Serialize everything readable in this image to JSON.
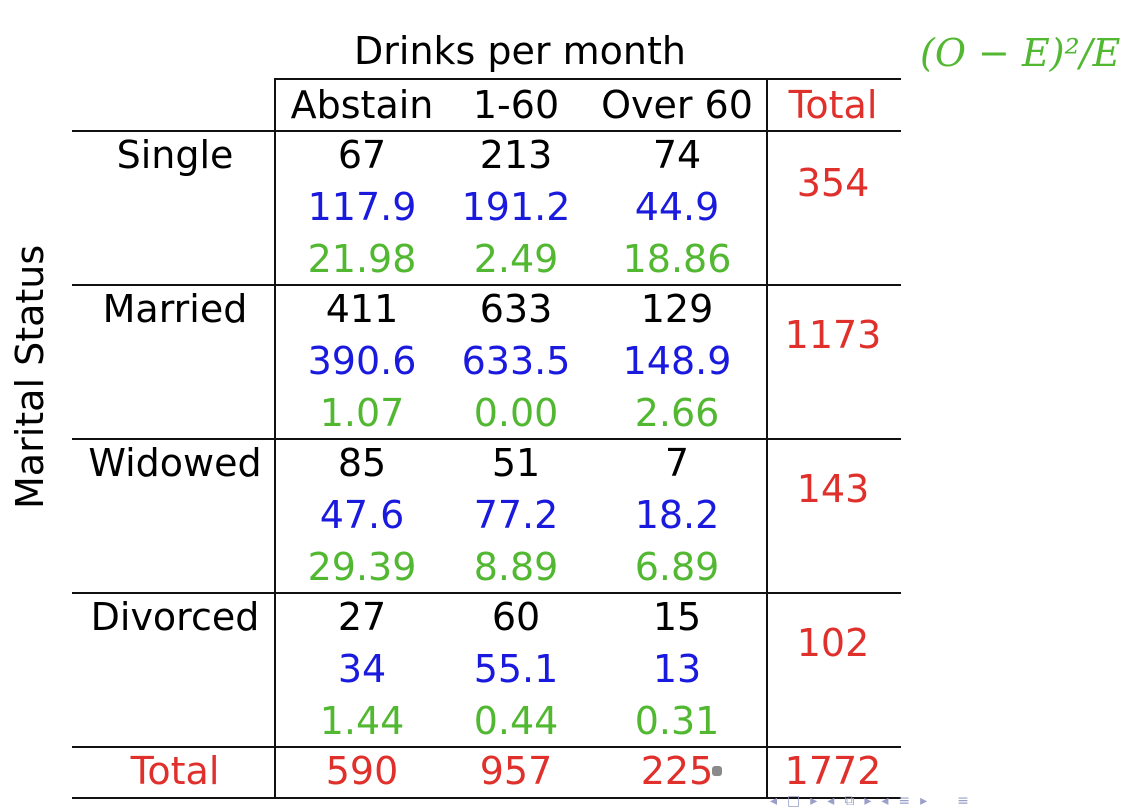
{
  "header": {
    "group_label": "Drinks per month",
    "formula": "(O − E)²/E",
    "side_label": "Marital Status"
  },
  "columns": [
    "Abstain",
    "1-60",
    "Over 60",
    "Total"
  ],
  "rows": [
    {
      "label": "Single",
      "observed": [
        "67",
        "213",
        "74"
      ],
      "expected": [
        "117.9",
        "191.2",
        "44.9"
      ],
      "contrib": [
        "21.98",
        "2.49",
        "18.86"
      ],
      "total": "354"
    },
    {
      "label": "Married",
      "observed": [
        "411",
        "633",
        "129"
      ],
      "expected": [
        "390.6",
        "633.5",
        "148.9"
      ],
      "contrib": [
        "1.07",
        "0.00",
        "2.66"
      ],
      "total": "1173"
    },
    {
      "label": "Widowed",
      "observed": [
        "85",
        "51",
        "7"
      ],
      "expected": [
        "47.6",
        "77.2",
        "18.2"
      ],
      "contrib": [
        "29.39",
        "8.89",
        "6.89"
      ],
      "total": "143"
    },
    {
      "label": "Divorced",
      "observed": [
        "27",
        "60",
        "15"
      ],
      "expected": [
        "34",
        "55.1",
        "13"
      ],
      "contrib": [
        "1.44",
        "0.44",
        "0.31"
      ],
      "total": "102"
    }
  ],
  "totals_row": {
    "label": "Total",
    "values": [
      "590",
      "957",
      "225"
    ],
    "grand_total": "1772"
  },
  "colors": {
    "observed": "#000000",
    "expected": "#1a1adf",
    "contrib": "#52b832",
    "total": "#e0302c"
  },
  "nav": {
    "icons": [
      "nav-frame-prev-icon",
      "nav-frame-icon",
      "nav-frame-next-icon",
      "nav-subsection-prev-icon",
      "nav-subsection-icon",
      "nav-subsection-next-icon",
      "nav-section-prev-icon",
      "nav-section-icon",
      "nav-section-next-icon",
      "nav-menu-icon"
    ]
  }
}
